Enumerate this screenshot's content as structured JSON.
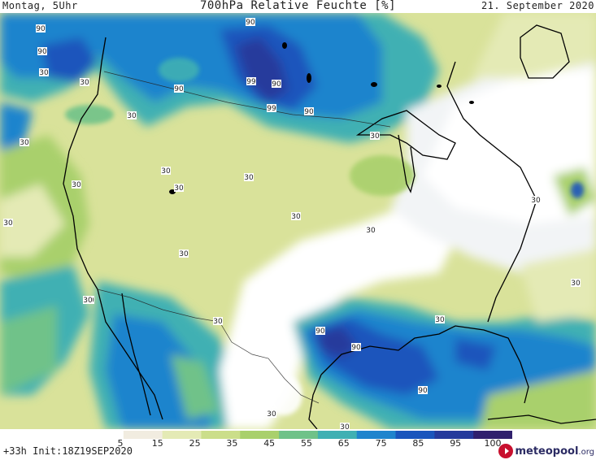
{
  "header": {
    "time": "Montag, 5Uhr",
    "title": "700hPa Relative Feuchte [%]",
    "date": "21. September 2020"
  },
  "legend": {
    "ticks": [
      "5",
      "15",
      "25",
      "35",
      "45",
      "55",
      "65",
      "75",
      "85",
      "95",
      "100"
    ],
    "colors": [
      "#ffffff",
      "#f1ece0",
      "#e4eab5",
      "#cbde8a",
      "#a9d06c",
      "#6fc289",
      "#3fb0b3",
      "#1f84cd",
      "#1a55bc",
      "#253a9c",
      "#30206d"
    ]
  },
  "footer": {
    "run_info": "+33h Init:18Z19SEP2020",
    "brand_name": "meteopool",
    "brand_tld": ".org"
  },
  "map_labels": [
    "90",
    "90",
    "30",
    "30",
    "90",
    "90",
    "99",
    "90",
    "30",
    "30",
    "99",
    "90",
    "30",
    "30",
    "30",
    "30",
    "30",
    "30",
    "30",
    "30",
    "30",
    "30",
    "30",
    "30",
    "30",
    "30",
    "30",
    "30",
    "30",
    "90",
    "90",
    "90",
    "30",
    "30"
  ]
}
